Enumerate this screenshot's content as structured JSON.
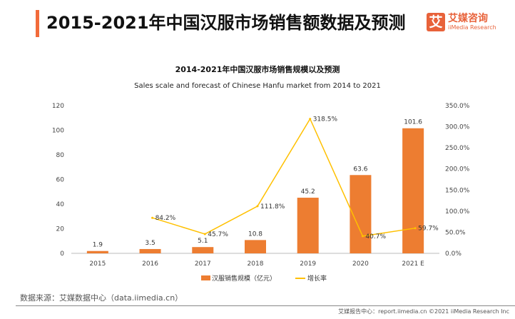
{
  "header": {
    "title": "2015-2021年中国汉服市场销售额数据及预测",
    "logo_mark": "艾",
    "logo_cn": "艾媒咨询",
    "logo_en": "iiMedia Research"
  },
  "chart_data": {
    "type": "bar+line",
    "title": "2014-2021年中国汉服市场销售规模以及预测",
    "subtitle": "Sales scale and forecast of Chinese Hanfu market from 2014 to 2021",
    "categories": [
      "2015",
      "2016",
      "2017",
      "2018",
      "2019",
      "2020",
      "2021 E"
    ],
    "series": [
      {
        "name": "汉服销售规模（亿元）",
        "type": "bar",
        "axis": "left",
        "color": "#ed7d31",
        "values": [
          1.9,
          3.5,
          5.1,
          10.8,
          45.2,
          63.6,
          101.6
        ],
        "labels": [
          "1.9",
          "3.5",
          "5.1",
          "10.8",
          "45.2",
          "63.6",
          "101.6"
        ]
      },
      {
        "name": "增长率",
        "type": "line",
        "axis": "right",
        "color": "#ffc000",
        "values": [
          null,
          84.2,
          45.7,
          111.8,
          318.5,
          40.7,
          59.7
        ],
        "labels": [
          "",
          "84.2%",
          "45.7%",
          "111.8%",
          "318.5%",
          "40.7%",
          "59.7%"
        ]
      }
    ],
    "y_left": {
      "range": [
        0,
        120
      ],
      "ticks": [
        "0",
        "20",
        "40",
        "60",
        "80",
        "100",
        "120"
      ]
    },
    "y_right": {
      "range": [
        0,
        350
      ],
      "ticks": [
        "0.0%",
        "50.0%",
        "100.0%",
        "150.0%",
        "200.0%",
        "250.0%",
        "300.0%",
        "350.0%"
      ]
    },
    "grid": false,
    "legend": "bottom"
  },
  "footer": {
    "source": "数据来源：艾媒数据中心（data.iimedia.cn）",
    "copyright": "艾媒报告中心：report.iimedia.cn  ©2021  iiMedia Research Inc"
  }
}
